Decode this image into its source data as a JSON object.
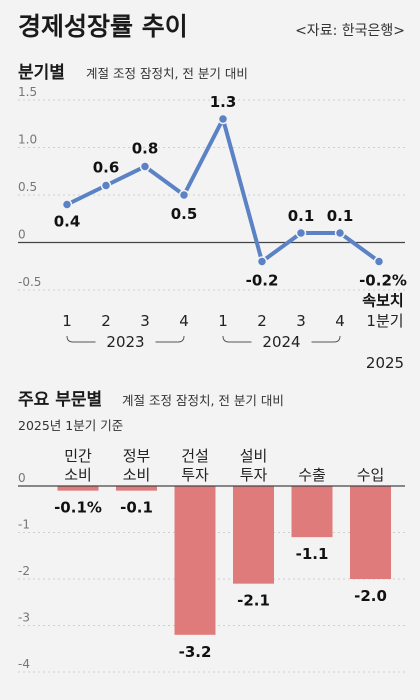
{
  "header": {
    "title": "경제성장률 추이",
    "source": "<자료: 한국은행>"
  },
  "colors": {
    "line": "#5b82c4",
    "bar": "#e07b7b",
    "grid": "#cfcfcf",
    "zero": "#444444",
    "background": "#f3f3f3"
  },
  "chart_data": [
    {
      "type": "line",
      "section_title": "분기별",
      "note": "계절 조정 잠정치, 전 분기 대비",
      "quarters": [
        "1",
        "2",
        "3",
        "4",
        "1",
        "2",
        "3",
        "4",
        "1분기"
      ],
      "years": [
        "2023",
        "2024",
        "2025"
      ],
      "values": [
        0.4,
        0.6,
        0.8,
        0.5,
        1.3,
        -0.2,
        0.1,
        0.1,
        -0.2
      ],
      "labels": [
        "0.4",
        "0.6",
        "0.8",
        "0.5",
        "1.3",
        "-0.2",
        "0.1",
        "0.1",
        "-0.2%"
      ],
      "last_note": "속보치",
      "yticks": [
        "1.5",
        "1.0",
        "0.5",
        "0",
        "-0.5"
      ],
      "ylim": [
        -0.5,
        1.5
      ],
      "grid": true
    },
    {
      "type": "bar",
      "section_title": "주요 부문별",
      "note": "계절 조정 잠정치, 전 분기 대비",
      "subnote": "2025년 1분기 기준",
      "categories": [
        [
          "민간",
          "소비"
        ],
        [
          "정부",
          "소비"
        ],
        [
          "건설",
          "투자"
        ],
        [
          "설비",
          "투자"
        ],
        [
          "수출"
        ],
        [
          "수입"
        ]
      ],
      "values": [
        -0.1,
        -0.1,
        -3.2,
        -2.1,
        -1.1,
        -2.0
      ],
      "labels": [
        "-0.1%",
        "-0.1",
        "-3.2",
        "-2.1",
        "-1.1",
        "-2.0"
      ],
      "yticks": [
        "0",
        "-1",
        "-2",
        "-3",
        "-4"
      ],
      "ylim": [
        -4,
        0
      ],
      "grid": true
    }
  ]
}
